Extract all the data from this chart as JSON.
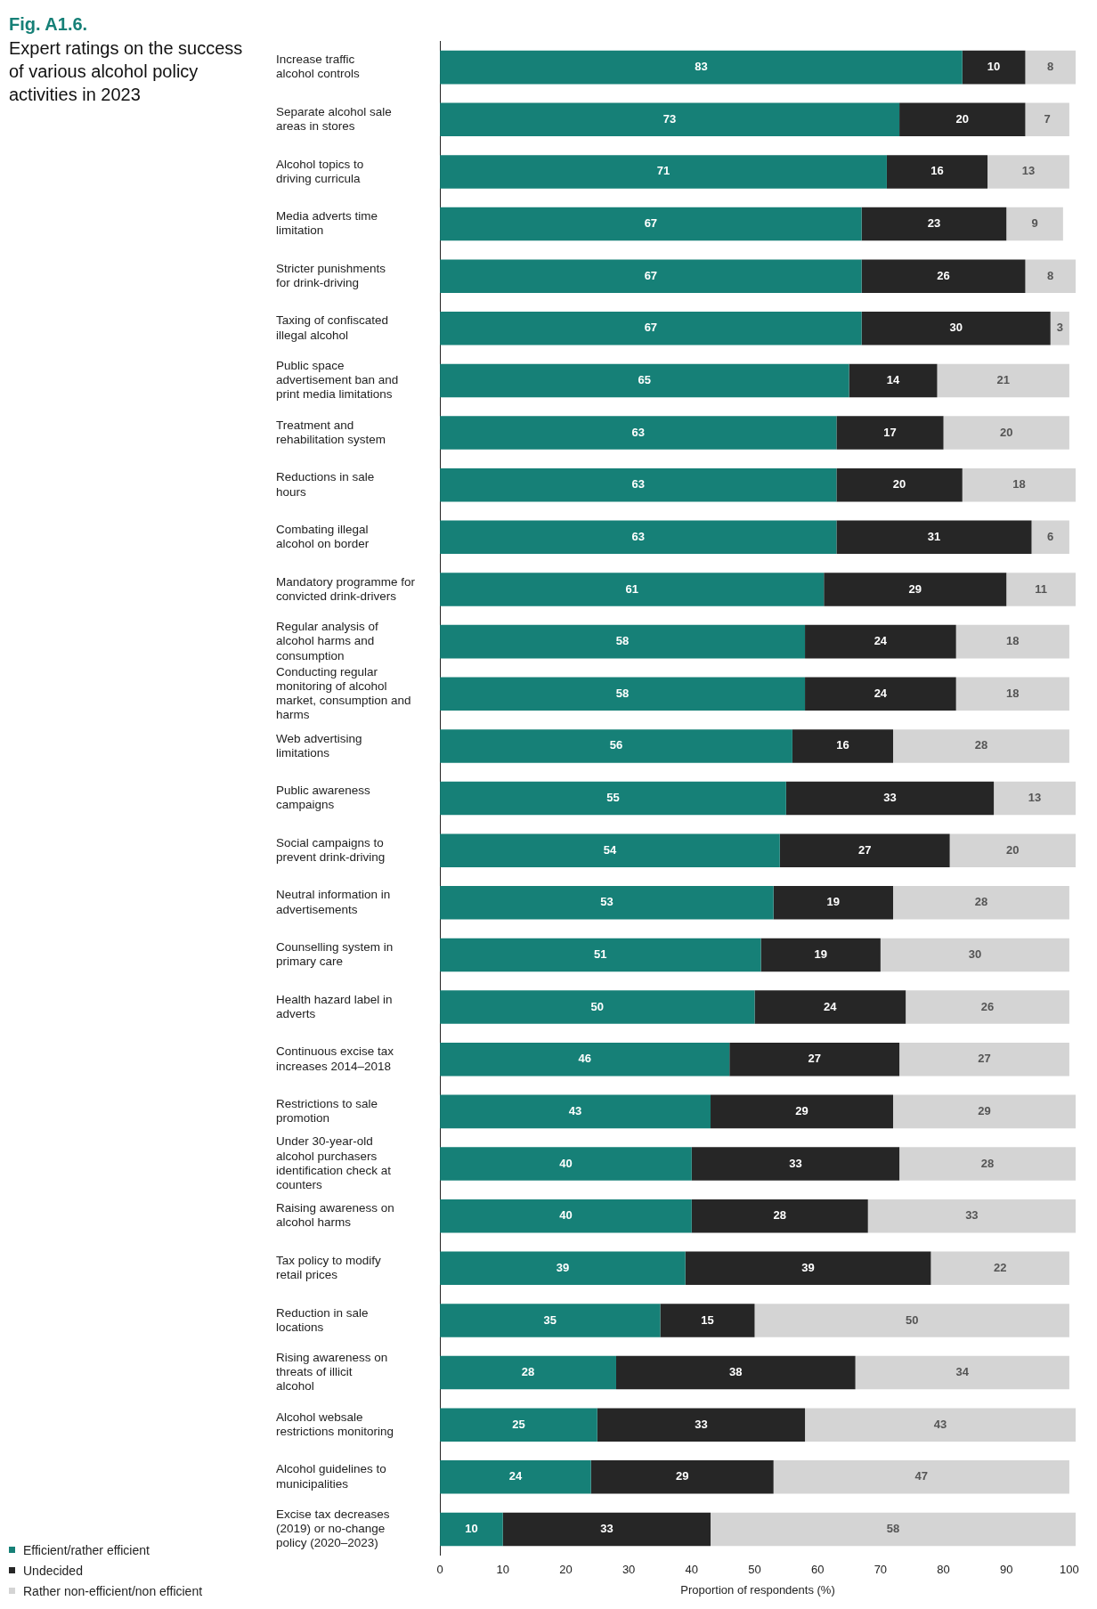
{
  "chart_data": {
    "type": "bar",
    "orientation": "horizontal",
    "stacked": true,
    "annotations": [
      "Fig. A1.6."
    ],
    "title": "Expert ratings on the success of various alcohol policy activities in 2023",
    "xlabel": "Proportion of respondents (%)",
    "categories": [
      "Increase traffic alcohol controls",
      "Separate alcohol sale areas in stores",
      "Alcohol topics to driving curricula",
      "Media adverts time limitation",
      "Stricter punishments for drink-driving",
      "Taxing of confiscated illegal alcohol",
      "Public space advertisement ban and print media limitations",
      "Treatment and rehabilitation system",
      "Reductions in sale hours",
      "Combating illegal alcohol on border",
      "Mandatory programme for convicted drink-drivers",
      "Regular analysis of alcohol harms and consumption",
      "Conducting regular monitoring of alcohol market, consumption and harms",
      "Web advertising limitations",
      "Public awareness campaigns",
      "Social campaigns to prevent drink-driving",
      "Neutral information in advertisements",
      "Counselling system in primary care",
      "Health hazard label in adverts",
      "Continuous excise tax increases 2014–2018",
      "Restrictions to sale promotion",
      "Under 30-year-old alcohol purchasers identification check at counters",
      "Raising awareness on alcohol harms",
      "Tax policy to modify retail prices",
      "Reduction in sale locations",
      "Rising awareness on threats of illicit alcohol",
      "Alcohol websale restrictions monitoring",
      "Alcohol guidelines to municipalities",
      "Excise tax decreases (2019) or no-change policy (2020–2023)"
    ],
    "series": [
      {
        "name": "Efficient/rather efficient",
        "color": "#168077",
        "values": [
          83,
          73,
          71,
          67,
          67,
          67,
          65,
          63,
          63,
          63,
          61,
          58,
          58,
          56,
          55,
          54,
          53,
          51,
          50,
          46,
          43,
          40,
          40,
          39,
          35,
          28,
          25,
          24,
          10
        ]
      },
      {
        "name": "Undecided",
        "color": "#262626",
        "values": [
          10,
          20,
          16,
          23,
          26,
          30,
          14,
          17,
          20,
          31,
          29,
          24,
          24,
          16,
          33,
          27,
          19,
          19,
          24,
          27,
          29,
          33,
          28,
          39,
          15,
          38,
          33,
          29,
          33
        ]
      },
      {
        "name": "Rather non-efficient/non efficient",
        "color": "#d4d4d4",
        "values": [
          8,
          7,
          13,
          9,
          8,
          3,
          21,
          20,
          18,
          6,
          11,
          18,
          18,
          28,
          13,
          20,
          28,
          30,
          26,
          27,
          29,
          28,
          33,
          22,
          50,
          34,
          43,
          47,
          58
        ]
      }
    ],
    "xlim": [
      0,
      101
    ],
    "xticks": [
      0,
      10,
      20,
      30,
      40,
      50,
      60,
      70,
      80,
      90,
      100
    ],
    "data_labels": true,
    "grid": false,
    "legend": "bottom left"
  }
}
